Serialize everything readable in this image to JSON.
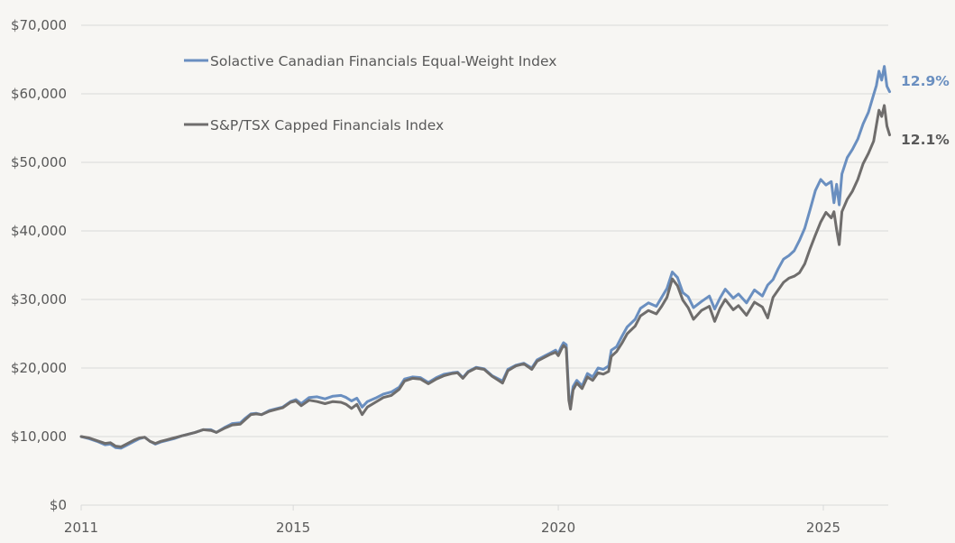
{
  "chart_data": {
    "type": "line",
    "title": "",
    "xlabel": "",
    "ylabel": "",
    "xlim": [
      2011,
      2026.3
    ],
    "ylim": [
      0,
      70000
    ],
    "y_ticks": [
      0,
      10000,
      20000,
      30000,
      40000,
      50000,
      60000,
      70000
    ],
    "y_tick_labels": [
      "$0",
      "$10,000",
      "$20,000",
      "$30,000",
      "$40,000",
      "$50,000",
      "$60,000",
      "$70,000"
    ],
    "x_ticks": [
      2011,
      2015,
      2020,
      2025
    ],
    "x_tick_labels": [
      "2011",
      "2015",
      "2020",
      "2025"
    ],
    "grid": "horizontal",
    "legend_position": "top-left",
    "series": [
      {
        "name": "Solactive Canadian Financials Equal-Weight Index",
        "color": "#6a8fc0",
        "end_label": "12.9%",
        "points": [
          [
            2011.0,
            10000
          ],
          [
            2011.15,
            9700
          ],
          [
            2011.3,
            9300
          ],
          [
            2011.45,
            8800
          ],
          [
            2011.55,
            8900
          ],
          [
            2011.65,
            8400
          ],
          [
            2011.75,
            8300
          ],
          [
            2011.85,
            8700
          ],
          [
            2012.0,
            9300
          ],
          [
            2012.1,
            9700
          ],
          [
            2012.2,
            9900
          ],
          [
            2012.3,
            9300
          ],
          [
            2012.4,
            8900
          ],
          [
            2012.5,
            9200
          ],
          [
            2012.6,
            9400
          ],
          [
            2012.75,
            9700
          ],
          [
            2012.9,
            10100
          ],
          [
            2013.0,
            10300
          ],
          [
            2013.15,
            10600
          ],
          [
            2013.3,
            11000
          ],
          [
            2013.45,
            11000
          ],
          [
            2013.55,
            10600
          ],
          [
            2013.7,
            11300
          ],
          [
            2013.85,
            11900
          ],
          [
            2014.0,
            12000
          ],
          [
            2014.1,
            12700
          ],
          [
            2014.2,
            13300
          ],
          [
            2014.3,
            13400
          ],
          [
            2014.4,
            13200
          ],
          [
            2014.55,
            13800
          ],
          [
            2014.7,
            14100
          ],
          [
            2014.8,
            14300
          ],
          [
            2014.95,
            15100
          ],
          [
            2015.05,
            15400
          ],
          [
            2015.15,
            14800
          ],
          [
            2015.3,
            15700
          ],
          [
            2015.45,
            15800
          ],
          [
            2015.6,
            15500
          ],
          [
            2015.75,
            15900
          ],
          [
            2015.9,
            16000
          ],
          [
            2016.0,
            15700
          ],
          [
            2016.1,
            15200
          ],
          [
            2016.2,
            15600
          ],
          [
            2016.3,
            14300
          ],
          [
            2016.4,
            15100
          ],
          [
            2016.55,
            15600
          ],
          [
            2016.7,
            16200
          ],
          [
            2016.85,
            16500
          ],
          [
            2017.0,
            17200
          ],
          [
            2017.1,
            18400
          ],
          [
            2017.25,
            18700
          ],
          [
            2017.4,
            18600
          ],
          [
            2017.55,
            17900
          ],
          [
            2017.7,
            18600
          ],
          [
            2017.85,
            19100
          ],
          [
            2018.0,
            19300
          ],
          [
            2018.1,
            19400
          ],
          [
            2018.2,
            18600
          ],
          [
            2018.3,
            19500
          ],
          [
            2018.45,
            20100
          ],
          [
            2018.6,
            19900
          ],
          [
            2018.75,
            18900
          ],
          [
            2018.85,
            18500
          ],
          [
            2018.95,
            18100
          ],
          [
            2019.05,
            19800
          ],
          [
            2019.2,
            20400
          ],
          [
            2019.35,
            20700
          ],
          [
            2019.5,
            20000
          ],
          [
            2019.6,
            21200
          ],
          [
            2019.75,
            21800
          ],
          [
            2019.85,
            22200
          ],
          [
            2019.95,
            22600
          ],
          [
            2020.0,
            22100
          ],
          [
            2020.05,
            23000
          ],
          [
            2020.1,
            23700
          ],
          [
            2020.15,
            23400
          ],
          [
            2020.2,
            16000
          ],
          [
            2020.23,
            14600
          ],
          [
            2020.28,
            17300
          ],
          [
            2020.35,
            18200
          ],
          [
            2020.45,
            17400
          ],
          [
            2020.55,
            19200
          ],
          [
            2020.65,
            18700
          ],
          [
            2020.75,
            20000
          ],
          [
            2020.85,
            19800
          ],
          [
            2020.95,
            20300
          ],
          [
            2021.0,
            22600
          ],
          [
            2021.1,
            23100
          ],
          [
            2021.2,
            24600
          ],
          [
            2021.3,
            26000
          ],
          [
            2021.45,
            27100
          ],
          [
            2021.55,
            28700
          ],
          [
            2021.7,
            29500
          ],
          [
            2021.85,
            29000
          ],
          [
            2021.95,
            30300
          ],
          [
            2022.05,
            31600
          ],
          [
            2022.15,
            34000
          ],
          [
            2022.25,
            33200
          ],
          [
            2022.35,
            31000
          ],
          [
            2022.45,
            30400
          ],
          [
            2022.55,
            28800
          ],
          [
            2022.7,
            29700
          ],
          [
            2022.85,
            30500
          ],
          [
            2022.95,
            28600
          ],
          [
            2023.05,
            30200
          ],
          [
            2023.15,
            31500
          ],
          [
            2023.3,
            30200
          ],
          [
            2023.4,
            30800
          ],
          [
            2023.55,
            29500
          ],
          [
            2023.7,
            31400
          ],
          [
            2023.85,
            30500
          ],
          [
            2023.95,
            32100
          ],
          [
            2024.05,
            32900
          ],
          [
            2024.15,
            34500
          ],
          [
            2024.25,
            35900
          ],
          [
            2024.35,
            36400
          ],
          [
            2024.45,
            37100
          ],
          [
            2024.55,
            38600
          ],
          [
            2024.65,
            40400
          ],
          [
            2024.75,
            43100
          ],
          [
            2024.85,
            45900
          ],
          [
            2024.95,
            47500
          ],
          [
            2025.05,
            46700
          ],
          [
            2025.15,
            47200
          ],
          [
            2025.2,
            44100
          ],
          [
            2025.25,
            46800
          ],
          [
            2025.3,
            43800
          ],
          [
            2025.35,
            48300
          ],
          [
            2025.45,
            50700
          ],
          [
            2025.55,
            51900
          ],
          [
            2025.65,
            53400
          ],
          [
            2025.75,
            55600
          ],
          [
            2025.85,
            57300
          ],
          [
            2025.95,
            59900
          ],
          [
            2026.0,
            61200
          ],
          [
            2026.05,
            63300
          ],
          [
            2026.1,
            62000
          ],
          [
            2026.15,
            64000
          ],
          [
            2026.2,
            61100
          ],
          [
            2026.25,
            60300
          ]
        ]
      },
      {
        "name": "S&P/TSX Capped Financials Index",
        "color": "#6f6d6c",
        "end_label": "12.1%",
        "points": [
          [
            2011.0,
            10000
          ],
          [
            2011.15,
            9800
          ],
          [
            2011.3,
            9400
          ],
          [
            2011.45,
            9000
          ],
          [
            2011.55,
            9100
          ],
          [
            2011.65,
            8600
          ],
          [
            2011.75,
            8500
          ],
          [
            2011.85,
            8900
          ],
          [
            2012.0,
            9500
          ],
          [
            2012.1,
            9800
          ],
          [
            2012.2,
            9900
          ],
          [
            2012.3,
            9300
          ],
          [
            2012.4,
            9000
          ],
          [
            2012.5,
            9300
          ],
          [
            2012.6,
            9500
          ],
          [
            2012.75,
            9800
          ],
          [
            2012.9,
            10100
          ],
          [
            2013.0,
            10300
          ],
          [
            2013.15,
            10600
          ],
          [
            2013.3,
            11000
          ],
          [
            2013.45,
            10900
          ],
          [
            2013.55,
            10600
          ],
          [
            2013.7,
            11200
          ],
          [
            2013.85,
            11700
          ],
          [
            2014.0,
            11800
          ],
          [
            2014.1,
            12500
          ],
          [
            2014.2,
            13200
          ],
          [
            2014.3,
            13300
          ],
          [
            2014.4,
            13200
          ],
          [
            2014.55,
            13700
          ],
          [
            2014.7,
            14000
          ],
          [
            2014.8,
            14200
          ],
          [
            2014.95,
            15000
          ],
          [
            2015.05,
            15200
          ],
          [
            2015.15,
            14500
          ],
          [
            2015.3,
            15300
          ],
          [
            2015.45,
            15100
          ],
          [
            2015.6,
            14800
          ],
          [
            2015.75,
            15100
          ],
          [
            2015.9,
            15000
          ],
          [
            2016.0,
            14700
          ],
          [
            2016.1,
            14100
          ],
          [
            2016.2,
            14700
          ],
          [
            2016.3,
            13200
          ],
          [
            2016.4,
            14300
          ],
          [
            2016.55,
            15000
          ],
          [
            2016.7,
            15700
          ],
          [
            2016.85,
            16000
          ],
          [
            2017.0,
            16900
          ],
          [
            2017.1,
            18100
          ],
          [
            2017.25,
            18500
          ],
          [
            2017.4,
            18400
          ],
          [
            2017.55,
            17700
          ],
          [
            2017.7,
            18400
          ],
          [
            2017.85,
            18900
          ],
          [
            2018.0,
            19200
          ],
          [
            2018.1,
            19300
          ],
          [
            2018.2,
            18500
          ],
          [
            2018.3,
            19400
          ],
          [
            2018.45,
            20000
          ],
          [
            2018.6,
            19800
          ],
          [
            2018.75,
            18800
          ],
          [
            2018.85,
            18300
          ],
          [
            2018.95,
            17800
          ],
          [
            2019.05,
            19600
          ],
          [
            2019.2,
            20300
          ],
          [
            2019.35,
            20600
          ],
          [
            2019.5,
            19800
          ],
          [
            2019.6,
            21000
          ],
          [
            2019.75,
            21600
          ],
          [
            2019.85,
            22000
          ],
          [
            2019.95,
            22300
          ],
          [
            2020.0,
            21800
          ],
          [
            2020.05,
            22600
          ],
          [
            2020.1,
            23300
          ],
          [
            2020.15,
            22900
          ],
          [
            2020.2,
            15300
          ],
          [
            2020.23,
            14000
          ],
          [
            2020.28,
            16800
          ],
          [
            2020.35,
            17800
          ],
          [
            2020.45,
            17000
          ],
          [
            2020.55,
            18700
          ],
          [
            2020.65,
            18200
          ],
          [
            2020.75,
            19300
          ],
          [
            2020.85,
            19100
          ],
          [
            2020.95,
            19500
          ],
          [
            2021.0,
            21700
          ],
          [
            2021.1,
            22400
          ],
          [
            2021.2,
            23600
          ],
          [
            2021.3,
            25000
          ],
          [
            2021.45,
            26100
          ],
          [
            2021.55,
            27600
          ],
          [
            2021.7,
            28400
          ],
          [
            2021.85,
            27900
          ],
          [
            2021.95,
            29000
          ],
          [
            2022.05,
            30300
          ],
          [
            2022.15,
            33000
          ],
          [
            2022.25,
            32000
          ],
          [
            2022.35,
            29900
          ],
          [
            2022.45,
            28800
          ],
          [
            2022.55,
            27100
          ],
          [
            2022.7,
            28400
          ],
          [
            2022.85,
            29000
          ],
          [
            2022.95,
            26800
          ],
          [
            2023.05,
            28700
          ],
          [
            2023.15,
            30000
          ],
          [
            2023.3,
            28500
          ],
          [
            2023.4,
            29100
          ],
          [
            2023.55,
            27700
          ],
          [
            2023.7,
            29600
          ],
          [
            2023.85,
            28900
          ],
          [
            2023.95,
            27300
          ],
          [
            2024.05,
            30300
          ],
          [
            2024.15,
            31400
          ],
          [
            2024.25,
            32500
          ],
          [
            2024.35,
            33100
          ],
          [
            2024.45,
            33400
          ],
          [
            2024.55,
            33900
          ],
          [
            2024.65,
            35200
          ],
          [
            2024.75,
            37400
          ],
          [
            2024.85,
            39400
          ],
          [
            2024.95,
            41300
          ],
          [
            2025.05,
            42700
          ],
          [
            2025.15,
            41900
          ],
          [
            2025.2,
            42800
          ],
          [
            2025.25,
            40200
          ],
          [
            2025.3,
            38000
          ],
          [
            2025.35,
            42800
          ],
          [
            2025.45,
            44600
          ],
          [
            2025.55,
            45800
          ],
          [
            2025.65,
            47500
          ],
          [
            2025.75,
            49800
          ],
          [
            2025.85,
            51300
          ],
          [
            2025.95,
            53100
          ],
          [
            2026.0,
            55400
          ],
          [
            2026.05,
            57600
          ],
          [
            2026.1,
            56700
          ],
          [
            2026.15,
            58300
          ],
          [
            2026.2,
            55300
          ],
          [
            2026.25,
            54000
          ]
        ]
      }
    ]
  }
}
